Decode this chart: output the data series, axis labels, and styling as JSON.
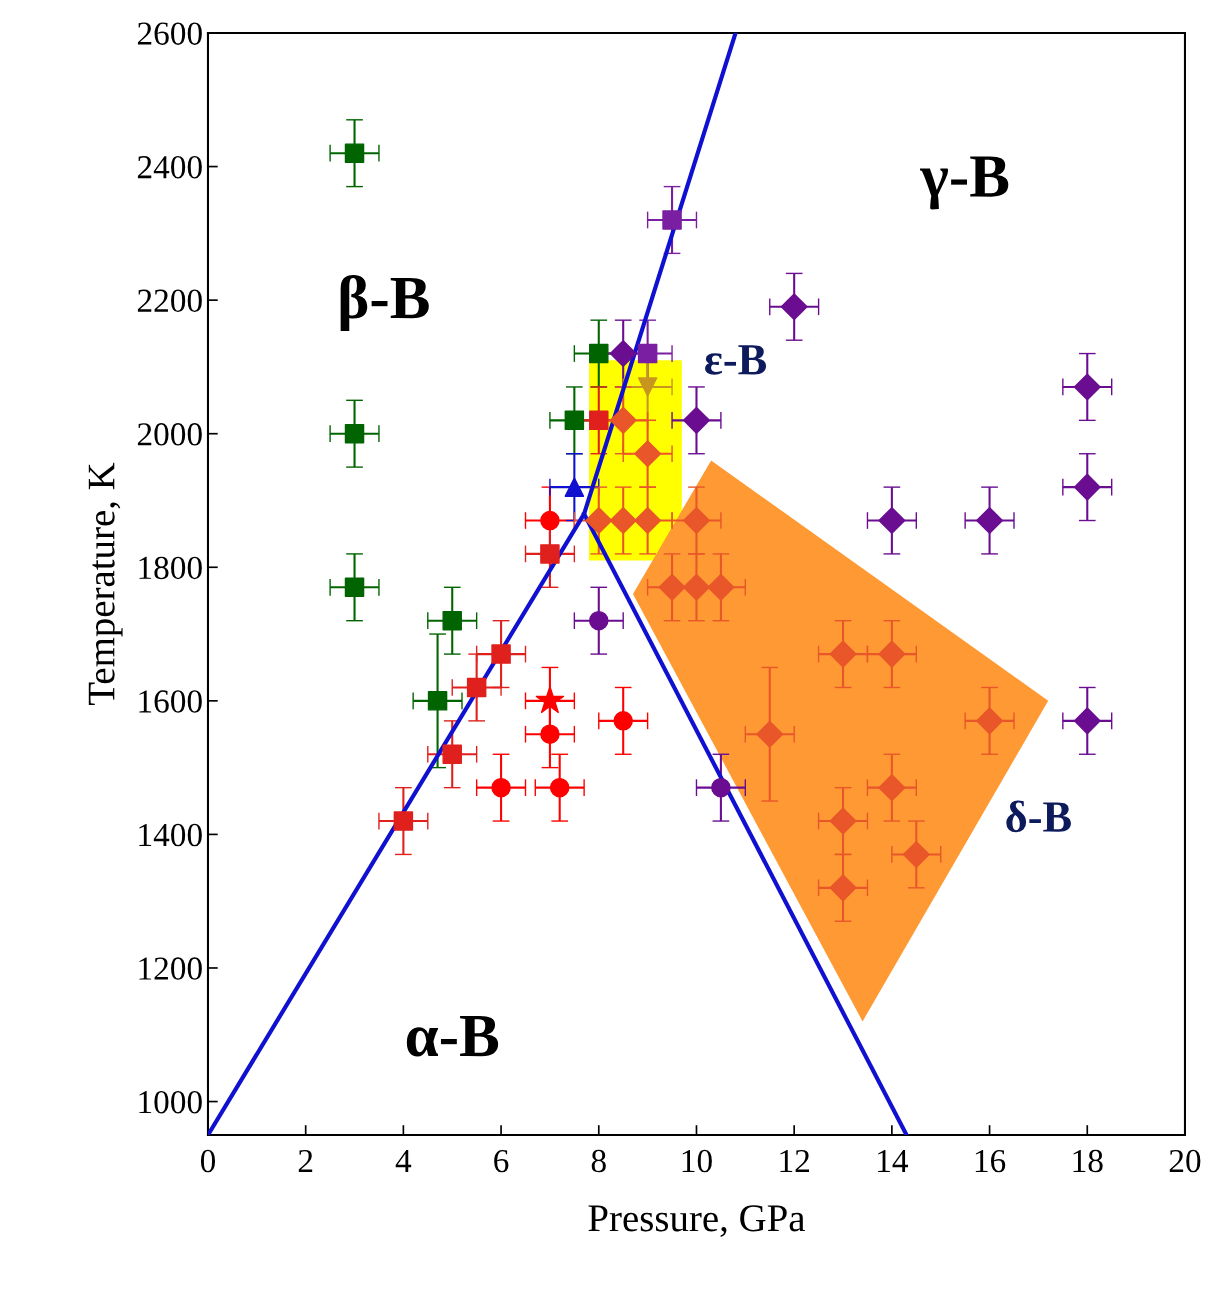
{
  "chart_data": {
    "type": "scatter",
    "xlabel": "Pressure, GPa",
    "ylabel": "Temperature, K",
    "xlim": [
      0,
      20
    ],
    "xticks": [
      0,
      2,
      4,
      6,
      8,
      10,
      12,
      14,
      16,
      18,
      20
    ],
    "ylim": [
      950,
      2600
    ],
    "yticks": [
      1000,
      1200,
      1400,
      1600,
      1800,
      2000,
      2200,
      2400,
      2600
    ],
    "grid": false,
    "series": [
      {
        "type": "area",
        "color": "#ffff00",
        "x": [
          7.8,
          9.7,
          9.7,
          7.8
        ],
        "values": [
          1810,
          1810,
          2110,
          2110
        ]
      },
      {
        "type": "area",
        "color": "#ff9933",
        "x": [
          8.7,
          10.3,
          17.2,
          13.4
        ],
        "values": [
          1760,
          1960,
          1600,
          1120
        ]
      },
      {
        "type": "line",
        "color": "#1010d0",
        "marker": "none",
        "line_style": "solid",
        "x": [
          0,
          7.7,
          10.8
        ],
        "values": [
          950,
          1880,
          2600
        ]
      },
      {
        "type": "line",
        "color": "#1010d0",
        "marker": "none",
        "line_style": "solid",
        "x": [
          7.7,
          14.3
        ],
        "values": [
          1880,
          950
        ]
      },
      {
        "marker": "square",
        "color": "#006400",
        "x": [
          3,
          3,
          3,
          5,
          4.7,
          7.5,
          8
        ],
        "values": [
          2420,
          2000,
          1770,
          1720,
          1600,
          2020,
          2120
        ],
        "errors": [
          50,
          50,
          50,
          50,
          100,
          50,
          50
        ],
        "xerrors": [
          0.5,
          0.5,
          0.5,
          0.5,
          0.5,
          0.5,
          0.5
        ]
      },
      {
        "marker": "circle",
        "color": "#ff0000",
        "x": [
          7,
          7,
          8.5,
          6,
          7.2
        ],
        "values": [
          1870,
          1550,
          1570,
          1470,
          1470
        ],
        "errors": [
          50,
          50,
          50,
          50,
          50
        ],
        "xerrors": [
          0.5,
          0.5,
          0.5,
          0.5,
          0.5
        ]
      },
      {
        "marker": "star",
        "color": "#ff0000",
        "x": [
          7
        ],
        "values": [
          1600
        ],
        "errors": [
          50
        ],
        "xerrors": [
          0.5
        ]
      },
      {
        "marker": "square",
        "color": "#e0201c",
        "x": [
          7,
          6,
          5.5,
          5,
          4,
          8
        ],
        "values": [
          1820,
          1670,
          1620,
          1520,
          1420,
          2020
        ],
        "errors": [
          50,
          50,
          50,
          50,
          50,
          50
        ],
        "xerrors": [
          0.5,
          0.5,
          0.5,
          0.5,
          0.5,
          0.5
        ]
      },
      {
        "marker": "triangle",
        "color": "#1010d0",
        "x": [
          7.5
        ],
        "values": [
          1920
        ],
        "errors": [
          50
        ],
        "xerrors": [
          0.5
        ]
      },
      {
        "marker": "diamond",
        "color": "#6a0d91",
        "x": [
          8.5,
          10,
          12,
          18,
          18,
          14,
          16,
          18
        ],
        "values": [
          2120,
          2020,
          2190,
          2070,
          1920,
          1870,
          1870,
          1570
        ],
        "errors": [
          50,
          50,
          50,
          50,
          50,
          50,
          50,
          50
        ],
        "xerrors": [
          0.5,
          0.5,
          0.5,
          0.5,
          0.5,
          0.5,
          0.5,
          0.5
        ]
      },
      {
        "marker": "square",
        "color": "#7a1fa2",
        "x": [
          9.5,
          9
        ],
        "values": [
          2320,
          2120
        ],
        "errors": [
          50,
          50
        ],
        "xerrors": [
          0.5,
          0.5
        ]
      },
      {
        "marker": "circle",
        "color": "#6a0d91",
        "x": [
          8,
          10.5
        ],
        "values": [
          1720,
          1470
        ],
        "errors": [
          50,
          50
        ],
        "xerrors": [
          0.5,
          0.5
        ]
      },
      {
        "marker": "triangle_down",
        "color": "#c8961e",
        "x": [
          9
        ],
        "values": [
          2070
        ],
        "errors": [
          50
        ],
        "xerrors": [
          0.5
        ]
      },
      {
        "marker": "diamond",
        "color": "#e8562a",
        "x": [
          8,
          8.5,
          9,
          8.5,
          9,
          10,
          9.5,
          10,
          10.5,
          13,
          14,
          11.5,
          16,
          14,
          13,
          14.5,
          13
        ],
        "values": [
          1870,
          1870,
          1870,
          2020,
          1970,
          1870,
          1770,
          1770,
          1770,
          1670,
          1670,
          1550,
          1570,
          1470,
          1420,
          1370,
          1320
        ],
        "errors": [
          50,
          50,
          50,
          50,
          50,
          50,
          50,
          50,
          50,
          50,
          50,
          100,
          50,
          50,
          50,
          50,
          50
        ],
        "xerrors": [
          0.5,
          0.5,
          0.5,
          0.5,
          0.5,
          0.5,
          0.5,
          0.5,
          0.5,
          0.5,
          0.5,
          0.5,
          0.5,
          0.5,
          0.5,
          0.5,
          0.5
        ]
      }
    ],
    "annotations": [
      "β-B",
      "γ-B",
      "ε-B",
      "α-B",
      "δ-B"
    ]
  }
}
